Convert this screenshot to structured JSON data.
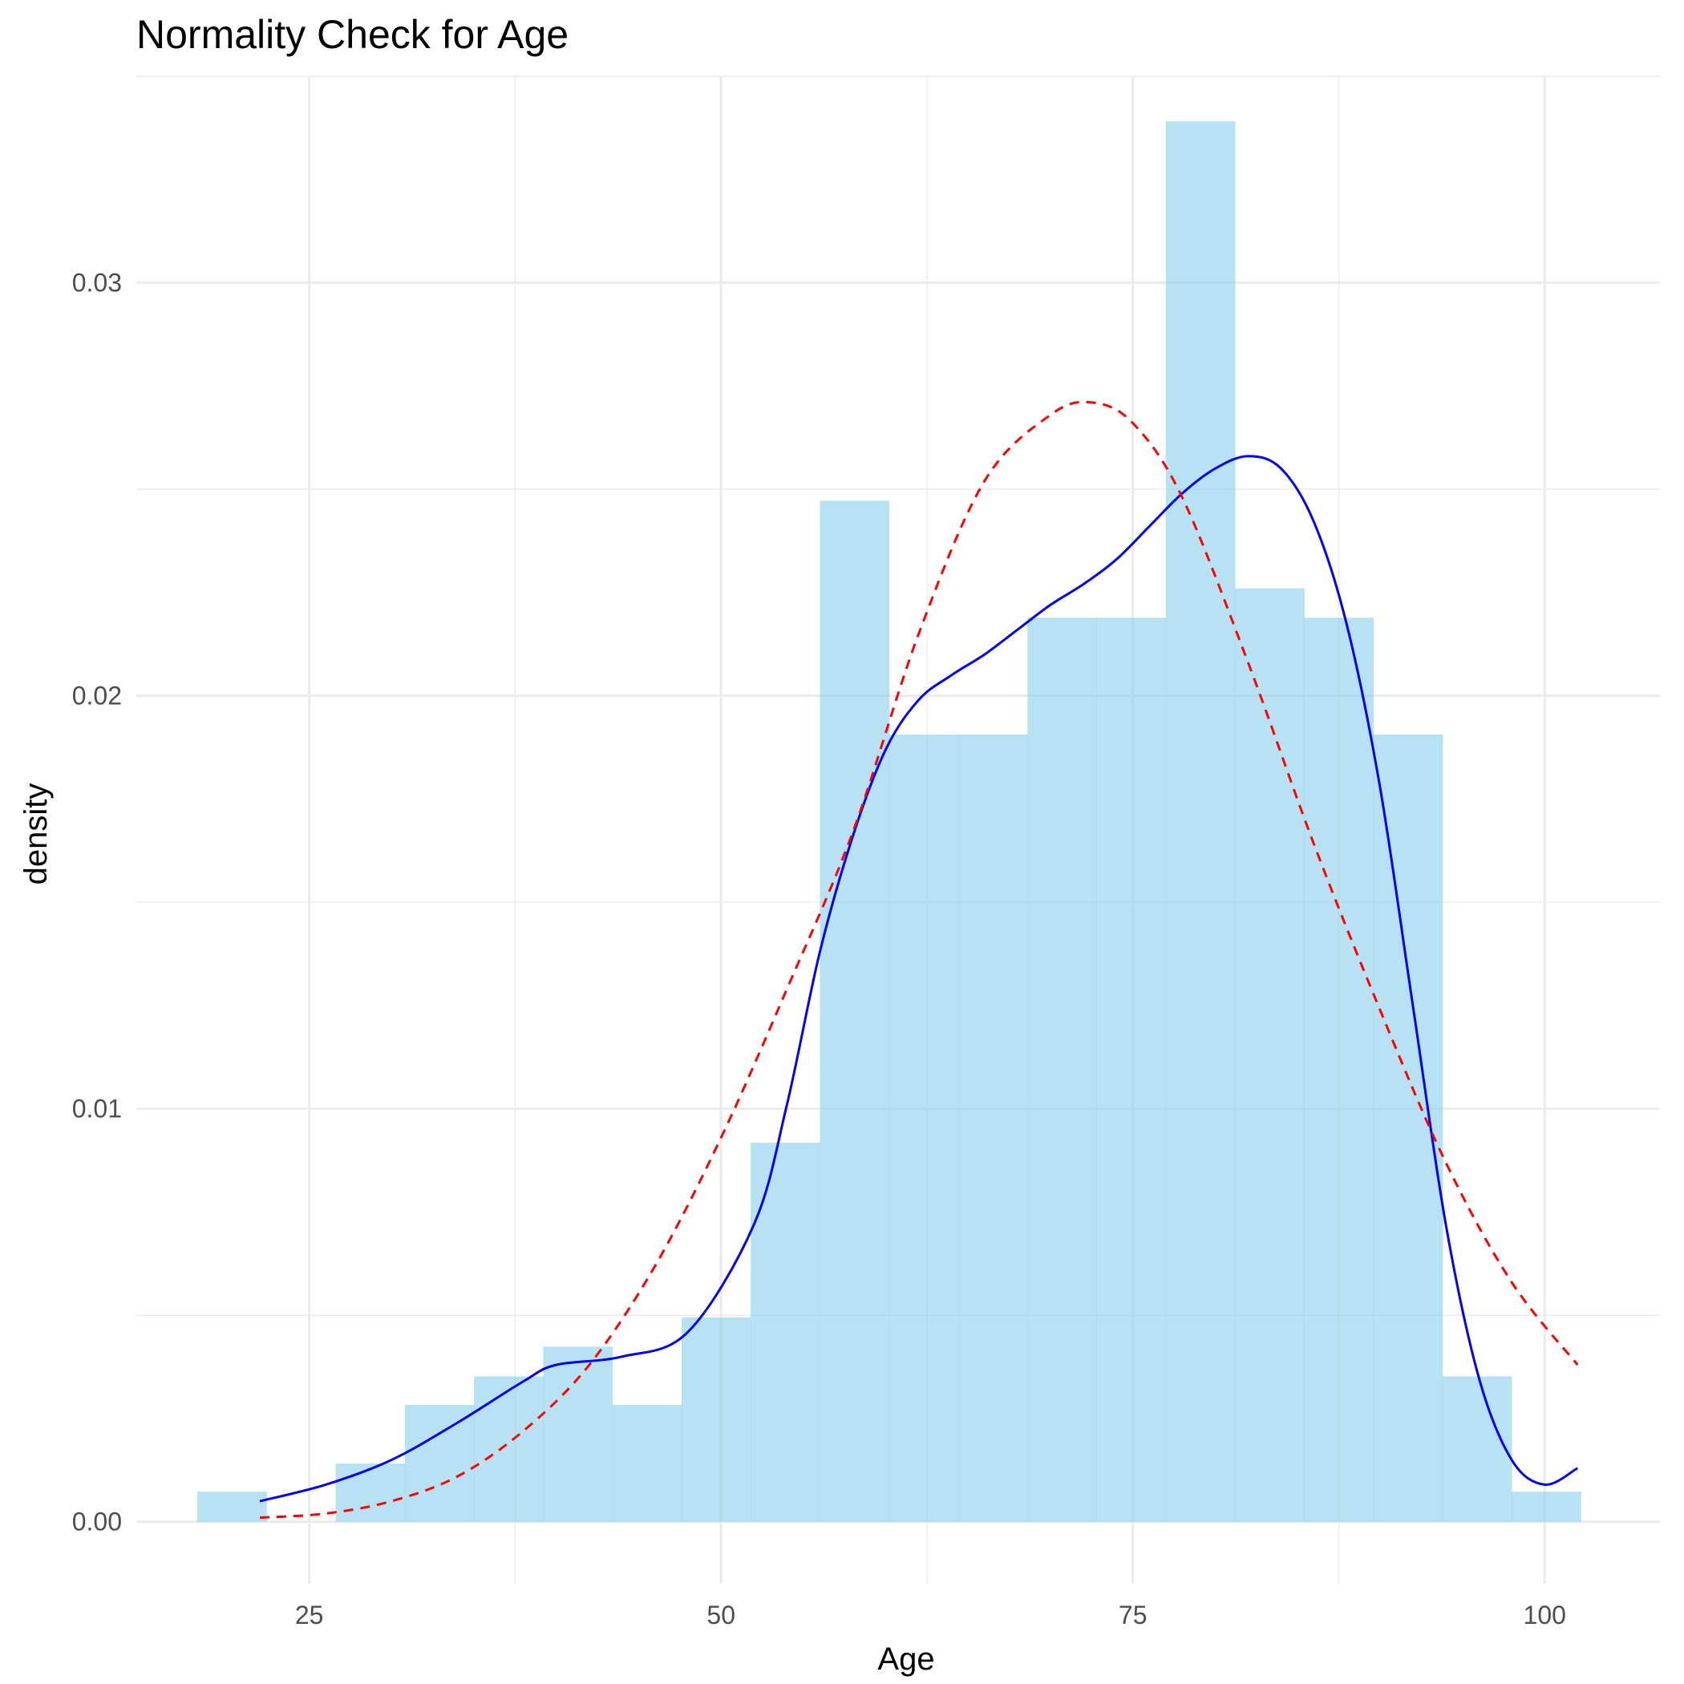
{
  "chart_data": {
    "type": "histogram",
    "title": "Normality Check for Age",
    "xlabel": "Age",
    "ylabel": "density",
    "xlim": [
      14.5,
      107
    ],
    "ylim": [
      -0.0015,
      0.035
    ],
    "x_ticks": [
      25,
      50,
      75,
      100
    ],
    "x_tick_labels": [
      "25",
      "50",
      "75",
      "100"
    ],
    "y_ticks": [
      0,
      0.01,
      0.02,
      0.03
    ],
    "y_tick_labels": [
      "0.00",
      "0.01",
      "0.02",
      "0.03"
    ],
    "grid": true,
    "bin_width": 4.2,
    "bins": [
      {
        "x0": 18.2,
        "x1": 22.4,
        "density": 0.00073
      },
      {
        "x0": 22.4,
        "x1": 26.6,
        "density": 0
      },
      {
        "x0": 26.6,
        "x1": 30.8,
        "density": 0.00141
      },
      {
        "x0": 30.8,
        "x1": 35.0,
        "density": 0.00283
      },
      {
        "x0": 35.0,
        "x1": 39.2,
        "density": 0.00352
      },
      {
        "x0": 39.2,
        "x1": 43.4,
        "density": 0.00424
      },
      {
        "x0": 43.4,
        "x1": 47.6,
        "density": 0.00283
      },
      {
        "x0": 47.6,
        "x1": 51.8,
        "density": 0.00495
      },
      {
        "x0": 51.8,
        "x1": 56.0,
        "density": 0.00918
      },
      {
        "x0": 56.0,
        "x1": 60.2,
        "density": 0.02472
      },
      {
        "x0": 60.2,
        "x1": 64.4,
        "density": 0.01906
      },
      {
        "x0": 64.4,
        "x1": 68.6,
        "density": 0.01906
      },
      {
        "x0": 68.6,
        "x1": 72.8,
        "density": 0.02189
      },
      {
        "x0": 72.8,
        "x1": 77.0,
        "density": 0.02189
      },
      {
        "x0": 77.0,
        "x1": 81.2,
        "density": 0.03391
      },
      {
        "x0": 81.2,
        "x1": 85.4,
        "density": 0.0226
      },
      {
        "x0": 85.4,
        "x1": 89.6,
        "density": 0.02189
      },
      {
        "x0": 89.6,
        "x1": 93.8,
        "density": 0.01906
      },
      {
        "x0": 93.8,
        "x1": 98.0,
        "density": 0.00352
      },
      {
        "x0": 98.0,
        "x1": 102.2,
        "density": 0.00073
      }
    ],
    "series": [
      {
        "kind": "kernel density",
        "color": "#0000ff",
        "linetype": "solid",
        "x": [
          22,
          26,
          30,
          34,
          38,
          40,
          44,
          48,
          52,
          54,
          56,
          58,
          60,
          62,
          64,
          66,
          68,
          70,
          72,
          74,
          76,
          78,
          80,
          82,
          84,
          86,
          88,
          90,
          92,
          94,
          96,
          98,
          100,
          102
        ],
        "y": [
          0.0005,
          0.0009,
          0.0015,
          0.0024,
          0.0034,
          0.0038,
          0.004,
          0.0046,
          0.0072,
          0.0101,
          0.0138,
          0.0166,
          0.0187,
          0.0199,
          0.0205,
          0.021,
          0.0216,
          0.0222,
          0.0227,
          0.0233,
          0.0241,
          0.0249,
          0.0255,
          0.0258,
          0.0255,
          0.0242,
          0.0217,
          0.0178,
          0.0125,
          0.0072,
          0.0035,
          0.0015,
          0.0009,
          0.0013
        ]
      },
      {
        "kind": "normal density",
        "color": "#ff0000",
        "linetype": "dashed",
        "x": [
          22,
          26,
          30,
          34,
          38,
          42,
          46,
          50,
          54,
          58,
          62,
          66,
          70,
          72.5,
          75,
          78,
          82,
          86,
          90,
          94,
          98,
          102
        ],
        "y": [
          0.0001,
          0.0002,
          0.0005,
          0.0011,
          0.0022,
          0.0038,
          0.0062,
          0.0093,
          0.0129,
          0.0167,
          0.0215,
          0.0252,
          0.0268,
          0.0271,
          0.0266,
          0.0248,
          0.0208,
          0.0164,
          0.0124,
          0.0087,
          0.0058,
          0.0038
        ]
      }
    ]
  }
}
